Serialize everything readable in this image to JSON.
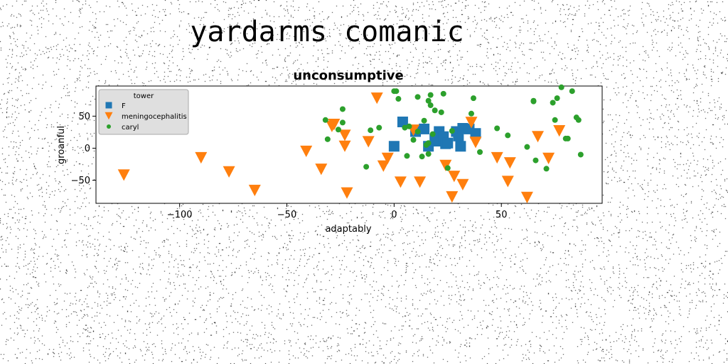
{
  "figure": {
    "suptitle": "yardarms comanic"
  },
  "chart_data": {
    "type": "scatter",
    "title": "unconsumptive",
    "xlabel": "adaptably",
    "ylabel": "groanful",
    "xlim": [
      -139,
      97
    ],
    "ylim": [
      -86,
      97
    ],
    "xticks": [
      -100,
      -50,
      0,
      50
    ],
    "yticks": [
      -50,
      0,
      50
    ],
    "xtick_labels": [
      "−100",
      "−50",
      "0",
      "50"
    ],
    "ytick_labels": [
      "−50",
      "0",
      "50"
    ],
    "grid": false,
    "legend": {
      "title": "tower",
      "placement": "upper-left"
    },
    "series": [
      {
        "name": "F",
        "marker": "square",
        "color": "#1f77b4",
        "x": [
          0,
          4,
          10,
          14,
          16,
          19,
          20,
          21,
          23,
          24,
          25,
          29,
          30,
          31,
          32,
          35,
          38
        ],
        "y": [
          3,
          41,
          26,
          30,
          3,
          14,
          11,
          26,
          18,
          7,
          8,
          26,
          19,
          3,
          31,
          30,
          23
        ]
      },
      {
        "name": "meningocephalitis",
        "marker": "triangle-down",
        "color": "#ff7f0e",
        "x": [
          -126,
          -90,
          -77,
          -65,
          -41,
          -34,
          -29,
          -28,
          -23,
          -23,
          -22,
          -12,
          -8,
          -5,
          -3,
          3,
          9,
          12,
          24,
          27,
          28,
          32,
          36,
          38,
          48,
          53,
          54,
          62,
          67,
          72,
          77
        ],
        "y": [
          -42,
          -15,
          -37,
          -66,
          -5,
          -33,
          34,
          37,
          20,
          3,
          -70,
          10,
          78,
          -28,
          -16,
          -53,
          28,
          -53,
          -27,
          -76,
          -44,
          -57,
          40,
          9,
          -15,
          -52,
          -23,
          -77,
          18,
          -16,
          27
        ]
      },
      {
        "name": "caryl",
        "marker": "circle",
        "color": "#2ca02c",
        "x": [
          -32,
          -31,
          -26,
          -24,
          -24,
          -13,
          -11,
          -7,
          0,
          1,
          2,
          5,
          6,
          7,
          9,
          11,
          11,
          13,
          14,
          15,
          16,
          16,
          16,
          17,
          17,
          18,
          19,
          22,
          23,
          25,
          27,
          36,
          37,
          40,
          48,
          53,
          62,
          65,
          65,
          66,
          71,
          74,
          75,
          76,
          78,
          80,
          81,
          83,
          85,
          86,
          87
        ],
        "y": [
          44,
          14,
          29,
          61,
          40,
          -29,
          28,
          32,
          89,
          89,
          77,
          32,
          -12,
          34,
          13,
          80,
          26,
          -13,
          43,
          5,
          74,
          8,
          -9,
          83,
          67,
          22,
          59,
          56,
          85,
          -31,
          27,
          54,
          78,
          -6,
          31,
          20,
          2,
          73,
          74,
          -19,
          -32,
          71,
          44,
          78,
          95,
          15,
          15,
          89,
          48,
          44,
          -10
        ]
      }
    ]
  }
}
